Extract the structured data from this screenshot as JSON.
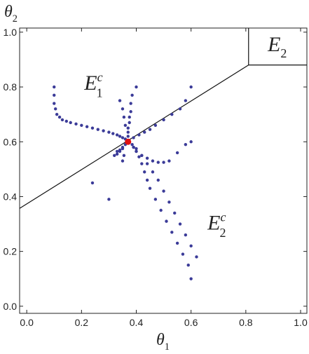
{
  "chart_data": {
    "type": "scatter",
    "xlabel": {
      "text": "θ",
      "sub": "1"
    },
    "ylabel": {
      "text": "θ",
      "sub": "2"
    },
    "xlim": [
      -0.026,
      1.023
    ],
    "ylim": [
      -0.026,
      1.015
    ],
    "xticks": [
      {
        "value": 0,
        "label": "0.0"
      },
      {
        "value": 0.2,
        "label": "0.2"
      },
      {
        "value": 0.4,
        "label": "0.4"
      },
      {
        "value": 0.6,
        "label": "0.6"
      },
      {
        "value": 0.8,
        "label": "0.8"
      },
      {
        "value": 1,
        "label": "1.0"
      }
    ],
    "yticks": [
      {
        "value": 0,
        "label": "0.0"
      },
      {
        "value": 0.2,
        "label": "0.2"
      },
      {
        "value": 0.4,
        "label": "0.4"
      },
      {
        "value": 0.6,
        "label": "0.6"
      },
      {
        "value": 0.8,
        "label": "0.8"
      },
      {
        "value": 1,
        "label": "1.0"
      }
    ],
    "boundaries": [
      {
        "x": [
          -0.026,
          0.81
        ],
        "y": [
          0.357,
          0.88
        ]
      },
      {
        "x": [
          0.81,
          1.023
        ],
        "y": [
          0.88,
          0.88
        ]
      },
      {
        "x": [
          0.81,
          0.81
        ],
        "y": [
          0.88,
          1.015
        ]
      }
    ],
    "annotations": [
      {
        "text": "E",
        "sub": "1",
        "sup": "c",
        "x": 0.21,
        "y": 0.79
      },
      {
        "text": "E",
        "sub": "2",
        "sup": "c",
        "x": 0.66,
        "y": 0.28
      },
      {
        "text": "E",
        "sub": "2",
        "x": 0.88,
        "y": 0.93
      }
    ],
    "series": [
      {
        "color": "#3b3b98",
        "x": [
          0.1,
          0.1,
          0.1,
          0.105,
          0.11,
          0.12,
          0.13,
          0.145,
          0.16,
          0.18,
          0.2,
          0.22,
          0.24,
          0.26,
          0.28,
          0.3,
          0.315,
          0.33,
          0.34,
          0.35,
          0.36,
          0.4,
          0.385,
          0.38,
          0.38,
          0.375,
          0.375,
          0.37,
          0.37,
          0.37,
          0.34,
          0.35,
          0.355,
          0.36,
          0.6,
          0.58,
          0.56,
          0.53,
          0.5,
          0.47,
          0.45,
          0.43,
          0.41,
          0.39,
          0.6,
          0.58,
          0.55,
          0.52,
          0.5,
          0.48,
          0.46,
          0.44,
          0.42,
          0.4,
          0.39,
          0.6,
          0.59,
          0.57,
          0.55,
          0.53,
          0.51,
          0.49,
          0.47,
          0.45,
          0.44,
          0.43,
          0.42,
          0.41,
          0.4,
          0.39,
          0.385,
          0.62,
          0.6,
          0.58,
          0.56,
          0.54,
          0.52,
          0.5,
          0.48,
          0.46,
          0.44,
          0.42,
          0.4,
          0.24,
          0.3,
          0.32,
          0.33,
          0.34,
          0.35,
          0.36,
          0.35,
          0.355,
          0.33,
          0.34,
          0.35
        ],
        "values": [
          0.8,
          0.77,
          0.74,
          0.72,
          0.7,
          0.69,
          0.68,
          0.675,
          0.67,
          0.665,
          0.66,
          0.655,
          0.65,
          0.645,
          0.64,
          0.635,
          0.63,
          0.625,
          0.62,
          0.615,
          0.61,
          0.8,
          0.77,
          0.74,
          0.71,
          0.69,
          0.67,
          0.65,
          0.635,
          0.62,
          0.75,
          0.72,
          0.69,
          0.66,
          0.8,
          0.75,
          0.72,
          0.7,
          0.68,
          0.66,
          0.645,
          0.635,
          0.625,
          0.615,
          0.6,
          0.59,
          0.56,
          0.53,
          0.525,
          0.525,
          0.53,
          0.54,
          0.55,
          0.565,
          0.58,
          0.1,
          0.15,
          0.19,
          0.23,
          0.27,
          0.31,
          0.35,
          0.39,
          0.43,
          0.46,
          0.49,
          0.52,
          0.545,
          0.565,
          0.58,
          0.59,
          0.18,
          0.22,
          0.26,
          0.3,
          0.34,
          0.38,
          0.42,
          0.46,
          0.49,
          0.52,
          0.55,
          0.575,
          0.45,
          0.39,
          0.55,
          0.565,
          0.57,
          0.58,
          0.59,
          0.53,
          0.55,
          0.555,
          0.565,
          0.575
        ]
      },
      {
        "color": "#e01010",
        "x": [
          0.37
        ],
        "values": [
          0.6
        ]
      }
    ]
  }
}
